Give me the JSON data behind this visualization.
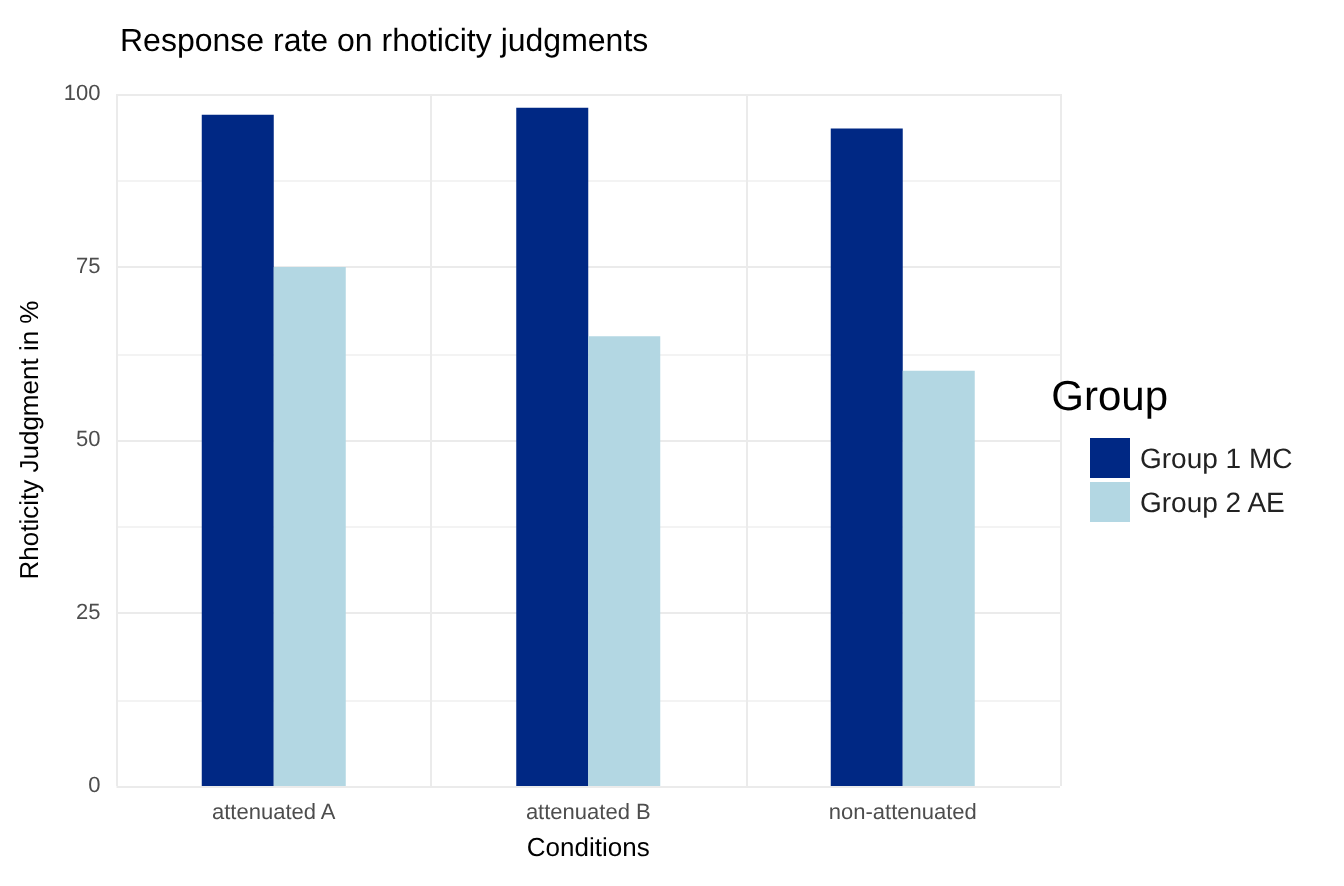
{
  "chart_data": {
    "type": "bar",
    "title": "Response rate on rhoticity judgments",
    "xlabel": "Conditions",
    "ylabel": "Rhoticity Judgment in %",
    "legend_title": "Group",
    "categories": [
      "attenuated A",
      "attenuated B",
      "non-attenuated"
    ],
    "series": [
      {
        "name": "Group 1 MC",
        "color": "#002884",
        "values": [
          97,
          98,
          95
        ]
      },
      {
        "name": "Group 2 AE",
        "color": "#b3d7e3",
        "values": [
          75,
          65,
          60
        ]
      }
    ],
    "ylim": [
      0,
      100
    ],
    "yticks": [
      0,
      25,
      50,
      75,
      100
    ],
    "grid": true,
    "legend": "right"
  }
}
